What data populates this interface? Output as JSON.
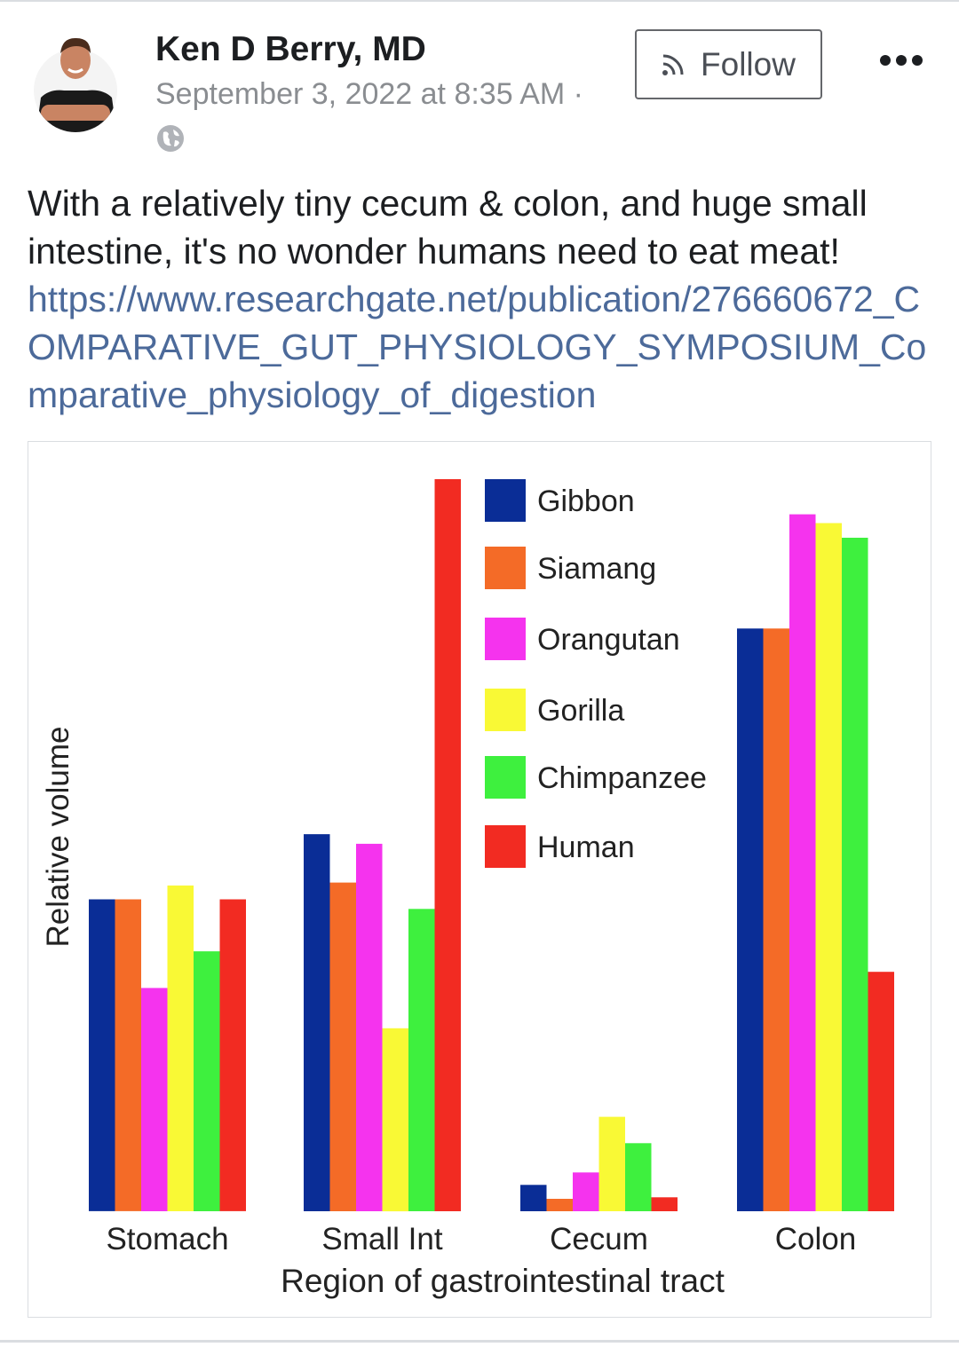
{
  "post": {
    "author": "Ken D Berry, MD",
    "timestamp": "September 3, 2022 at 8:35 AM ·",
    "privacy_icon": "globe-icon",
    "follow_label": "Follow",
    "follow_icon": "rss-icon",
    "more_icon": "more-dots-icon",
    "text": "With a relatively tiny cecum & colon, and huge small intestine, it's no wonder humans need to eat meat!",
    "link": "https://www.researchgate.net/publication/276660672_COMPARATIVE_GUT_PHYSIOLOGY_SYMPOSIUM_Comparative_physiology_of_digestion"
  },
  "colors": {
    "link": "#4c6a9a",
    "muted": "#8a8d91"
  },
  "chart_data": {
    "type": "bar",
    "title": "",
    "xlabel": "Region of gastrointestinal tract",
    "ylabel": "Relative volume",
    "categories": [
      "Stomach",
      "Small Int",
      "Cecum",
      "Colon"
    ],
    "ylim": [
      0,
      100
    ],
    "grid": false,
    "legend_position": "top-center",
    "series": [
      {
        "name": "Gibbon",
        "color": "#0a2d96",
        "values": [
          42.6,
          51.5,
          3.6,
          79.6
        ]
      },
      {
        "name": "Siamang",
        "color": "#f46b27",
        "values": [
          42.6,
          44.9,
          1.7,
          79.6
        ]
      },
      {
        "name": "Orangutan",
        "color": "#f533ee",
        "values": [
          30.5,
          50.2,
          5.3,
          95.2
        ]
      },
      {
        "name": "Gorilla",
        "color": "#f9f935",
        "values": [
          44.5,
          25.0,
          12.9,
          94.0
        ]
      },
      {
        "name": "Chimpanzee",
        "color": "#3ef03e",
        "values": [
          35.5,
          41.3,
          9.3,
          92.0
        ]
      },
      {
        "name": "Human",
        "color": "#f22b22",
        "values": [
          42.6,
          100.0,
          1.9,
          32.7
        ]
      }
    ]
  }
}
